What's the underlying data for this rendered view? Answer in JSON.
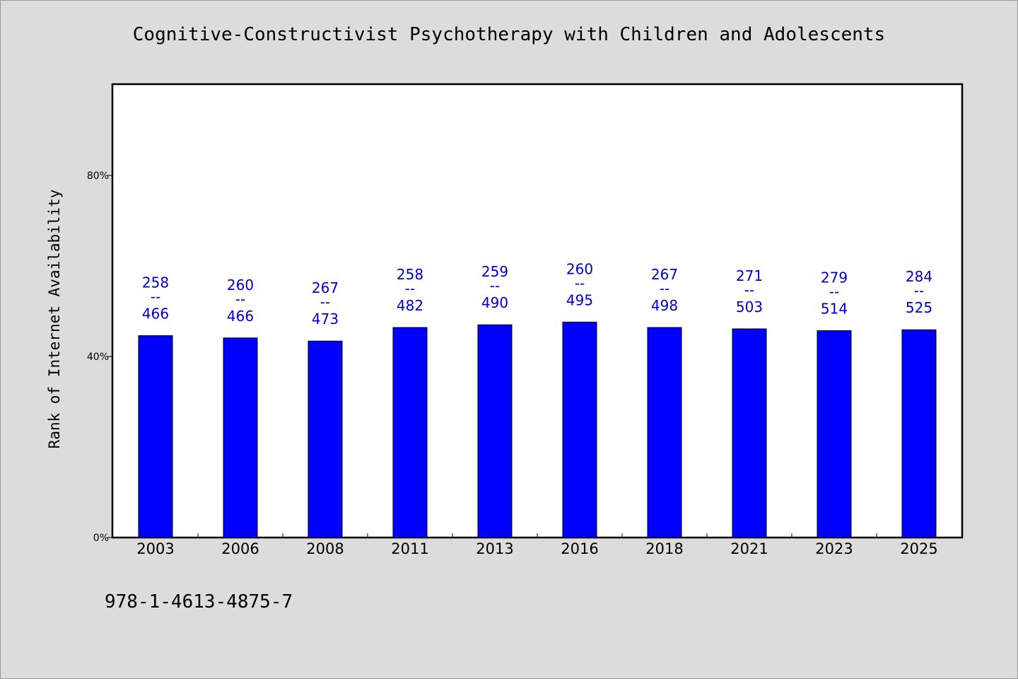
{
  "chart_data": {
    "type": "bar",
    "title": "Cognitive-Constructivist Psychotherapy with Children and Adolescents",
    "ylabel": "Rank of Internet Availability",
    "xlabel": "",
    "ylim": [
      0,
      100
    ],
    "yticks": [
      {
        "value": 0,
        "label": "0%"
      },
      {
        "value": 40,
        "label": "40%"
      },
      {
        "value": 80,
        "label": "80%"
      }
    ],
    "categories": [
      "2003",
      "2006",
      "2008",
      "2011",
      "2013",
      "2016",
      "2018",
      "2021",
      "2023",
      "2025"
    ],
    "values": [
      44.6,
      44.1,
      43.4,
      46.4,
      47.0,
      47.6,
      46.4,
      46.1,
      45.7,
      45.9
    ],
    "data_labels": [
      {
        "top": "258",
        "mid": "--",
        "bottom": "466"
      },
      {
        "top": "260",
        "mid": "--",
        "bottom": "466"
      },
      {
        "top": "267",
        "mid": "--",
        "bottom": "473"
      },
      {
        "top": "258",
        "mid": "--",
        "bottom": "482"
      },
      {
        "top": "259",
        "mid": "--",
        "bottom": "490"
      },
      {
        "top": "260",
        "mid": "--",
        "bottom": "495"
      },
      {
        "top": "267",
        "mid": "--",
        "bottom": "498"
      },
      {
        "top": "271",
        "mid": "--",
        "bottom": "503"
      },
      {
        "top": "279",
        "mid": "--",
        "bottom": "514"
      },
      {
        "top": "284",
        "mid": "--",
        "bottom": "525"
      }
    ],
    "bar_color": "#0000ff",
    "label_color": "#0000cc",
    "grid": false,
    "legend": "none"
  },
  "footer": {
    "id_text": "978-1-4613-4875-7"
  }
}
